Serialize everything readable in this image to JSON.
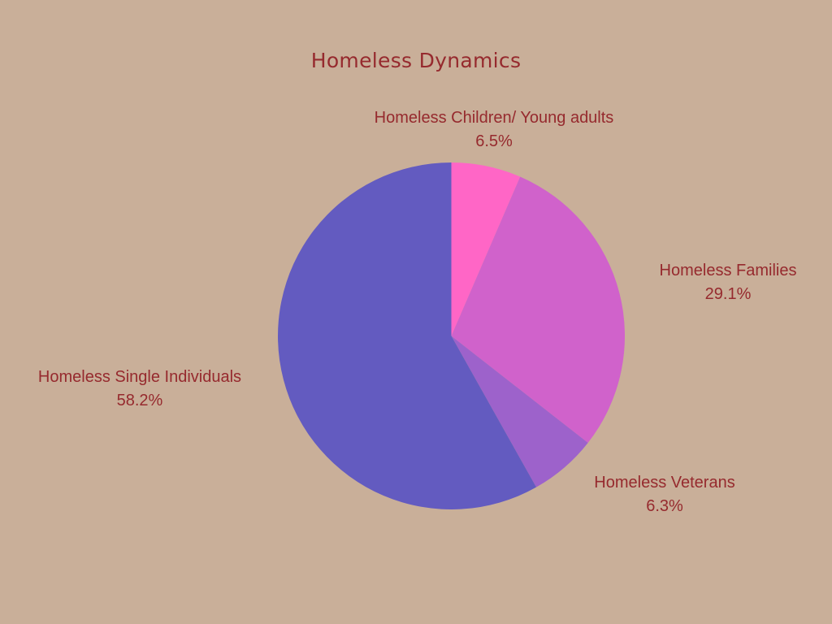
{
  "page": {
    "background": "#c9af99",
    "text_color": "#962a2e"
  },
  "chart_data": {
    "type": "pie",
    "title": "Homeless Dynamics",
    "start_angle_deg": 0,
    "direction": "clockwise",
    "slices": [
      {
        "label": "Homeless Children/ Young adults",
        "value": 6.5,
        "value_label": "6.5%",
        "color": "#ff66c6"
      },
      {
        "label": "Homeless Families",
        "value": 29.1,
        "value_label": "29.1%",
        "color": "#d062cb"
      },
      {
        "label": "Homeless Veterans",
        "value": 6.3,
        "value_label": "6.3%",
        "color": "#9d62cb"
      },
      {
        "label": "Homeless Single Individuals",
        "value": 58.2,
        "value_label": "58.2%",
        "color": "#635bc0"
      }
    ]
  }
}
